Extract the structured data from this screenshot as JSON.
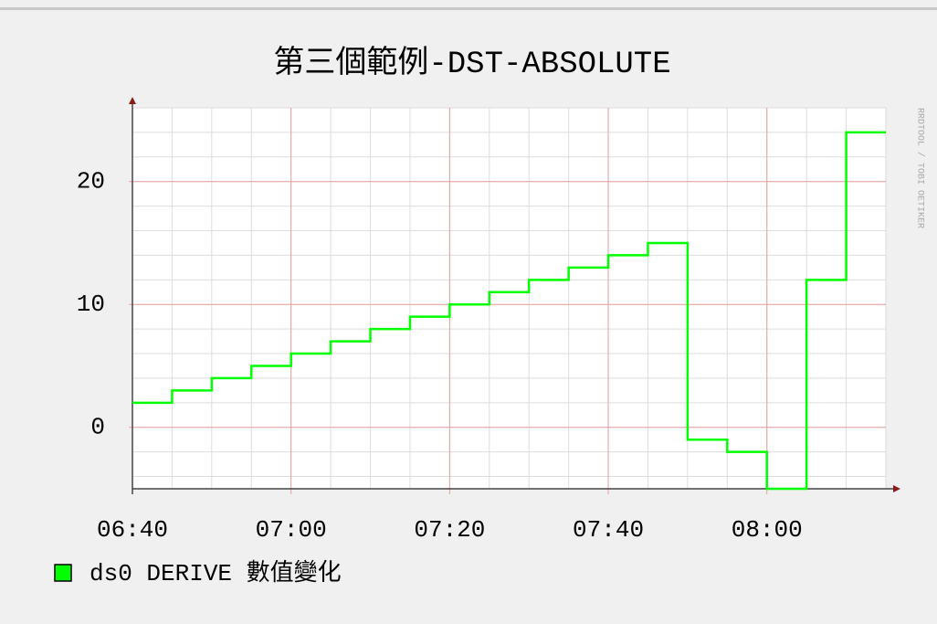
{
  "chart_data": {
    "type": "line",
    "title": "第三個範例-DST-ABSOLUTE",
    "watermark": "RRDTOOL / TOBI OETIKER",
    "x": [
      "06:40",
      "06:45",
      "06:50",
      "06:55",
      "07:00",
      "07:05",
      "07:10",
      "07:15",
      "07:20",
      "07:25",
      "07:30",
      "07:35",
      "07:40",
      "07:45",
      "07:50",
      "07:55",
      "08:00",
      "08:05",
      "08:10"
    ],
    "series": [
      {
        "name": "ds0 DERIVE 數值變化",
        "color": "#00ff00",
        "values": [
          2,
          3,
          4,
          5,
          6,
          7,
          8,
          9,
          10,
          11,
          12,
          13,
          14,
          15,
          -1,
          -2,
          -5,
          12,
          24
        ]
      }
    ],
    "xlim": [
      "06:40",
      "08:15"
    ],
    "xticks": [
      "06:40",
      "07:00",
      "07:20",
      "07:40",
      "08:00"
    ],
    "ylim": [
      -5,
      26
    ],
    "yticks": [
      0,
      10,
      20
    ],
    "grid": {
      "minor_y": 2,
      "minor_x_minutes": 5
    },
    "step": true
  }
}
